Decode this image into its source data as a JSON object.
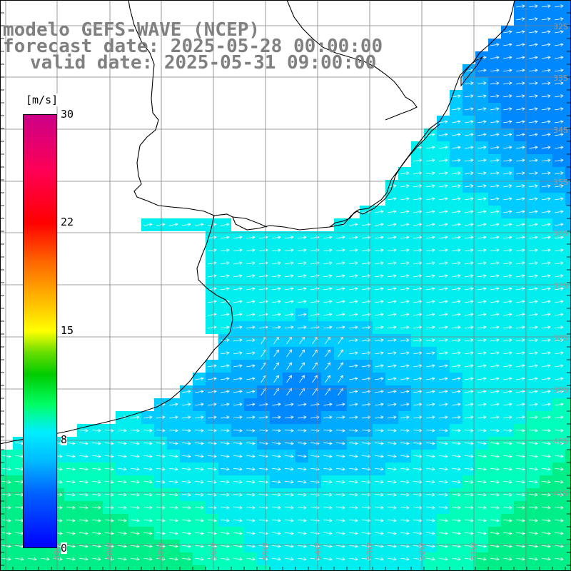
{
  "title": {
    "line1": "modelo GEFS-WAVE (NCEP)",
    "line2": "forecast date: 2025-05-28 00:00:00",
    "line3": "valid date: 2025-05-31 09:00:00"
  },
  "colorbar": {
    "unit": "[m/s]",
    "ticks": [
      "30",
      "22",
      "15",
      "8",
      "0"
    ],
    "ramp": [
      "#0000ff",
      "#00ccff",
      "#00eeff",
      "#00cc00",
      "#ffff00",
      "#ff6600",
      "#ff0000",
      "#cc0088"
    ]
  },
  "map": {
    "lat_labels": [
      "32S",
      "33S",
      "34S",
      "35S",
      "36S",
      "37S",
      "38S",
      "39S",
      "40S",
      "41S"
    ],
    "lon_labels": [
      "59W",
      "58W",
      "57W",
      "56W",
      "55W",
      "54W",
      "53W",
      "52W",
      "51W"
    ],
    "colors": {
      "land": "#ffffff",
      "coast": "#000000",
      "grid": "#808080",
      "arrows": "#ffffff",
      "label": "#9a9a9a"
    }
  }
}
